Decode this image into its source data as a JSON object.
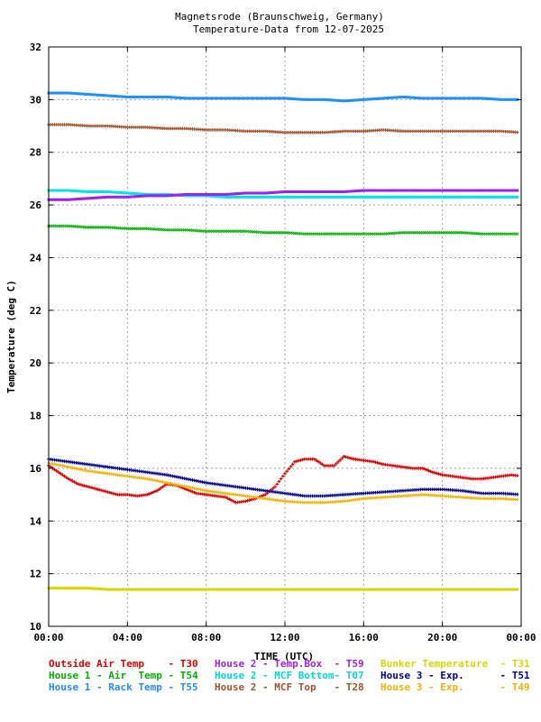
{
  "chart_data": {
    "type": "scatter",
    "title": "Magnetsrode (Braunschweig, Germany)",
    "subtitle": "Temperature-Data from 12-07-2025",
    "xlabel": "TIME (UTC)",
    "ylabel": "Temperature (deg C)",
    "xlim": [
      0,
      24
    ],
    "ylim": [
      10,
      32
    ],
    "x_ticks": [
      "00:00",
      "04:00",
      "08:00",
      "12:00",
      "16:00",
      "20:00",
      "00:00"
    ],
    "y_ticks": [
      "10",
      "12",
      "14",
      "16",
      "18",
      "20",
      "22",
      "24",
      "26",
      "28",
      "30",
      "32"
    ],
    "grid": true,
    "legend_position": "bottom",
    "series": [
      {
        "name": "House 1 - Rack Temp",
        "code": "T55",
        "color": "#1e90ff",
        "marker": "square",
        "x": [
          0,
          1,
          2,
          3,
          4,
          5,
          6,
          7,
          8,
          9,
          10,
          11,
          12,
          13,
          14,
          15,
          16,
          17,
          18,
          19,
          20,
          21,
          22,
          23,
          24
        ],
        "y": [
          30.25,
          30.25,
          30.2,
          30.15,
          30.1,
          30.1,
          30.1,
          30.05,
          30.05,
          30.05,
          30.05,
          30.05,
          30.05,
          30.0,
          30.0,
          29.95,
          30.0,
          30.05,
          30.1,
          30.05,
          30.05,
          30.05,
          30.05,
          30.0,
          30.0
        ]
      },
      {
        "name": "House 2 - MCF Top",
        "code": "T28",
        "color": "#a0522d",
        "marker": "plus",
        "x": [
          0,
          1,
          2,
          3,
          4,
          5,
          6,
          7,
          8,
          9,
          10,
          11,
          12,
          13,
          14,
          15,
          16,
          17,
          18,
          19,
          20,
          21,
          22,
          23,
          24
        ],
        "y": [
          29.05,
          29.05,
          29.0,
          29.0,
          28.95,
          28.95,
          28.9,
          28.9,
          28.85,
          28.85,
          28.8,
          28.8,
          28.75,
          28.75,
          28.75,
          28.8,
          28.8,
          28.85,
          28.8,
          28.8,
          28.8,
          28.8,
          28.8,
          28.8,
          28.75
        ]
      },
      {
        "name": "House 2 - MCF Bottom",
        "code": "T07",
        "color": "#00e5e5",
        "marker": "square",
        "x": [
          0,
          1,
          2,
          3,
          4,
          5,
          6,
          7,
          8,
          9,
          10,
          11,
          12,
          13,
          14,
          15,
          16,
          17,
          18,
          19,
          20,
          21,
          22,
          23,
          24
        ],
        "y": [
          26.55,
          26.55,
          26.5,
          26.5,
          26.45,
          26.4,
          26.4,
          26.35,
          26.35,
          26.3,
          26.3,
          26.3,
          26.3,
          26.3,
          26.3,
          26.3,
          26.3,
          26.3,
          26.3,
          26.3,
          26.3,
          26.3,
          26.3,
          26.3,
          26.3
        ]
      },
      {
        "name": "House 2 - Temp.Box",
        "code": "T59",
        "color": "#a020f0",
        "marker": "square",
        "x": [
          0,
          1,
          2,
          3,
          4,
          5,
          6,
          7,
          8,
          9,
          10,
          11,
          12,
          13,
          14,
          15,
          16,
          17,
          18,
          19,
          20,
          21,
          22,
          23,
          24
        ],
        "y": [
          26.2,
          26.2,
          26.25,
          26.3,
          26.3,
          26.35,
          26.35,
          26.4,
          26.4,
          26.4,
          26.45,
          26.45,
          26.5,
          26.5,
          26.5,
          26.5,
          26.55,
          26.55,
          26.55,
          26.55,
          26.55,
          26.55,
          26.55,
          26.55,
          26.55
        ]
      },
      {
        "name": "House 1 - Air  Temp",
        "code": "T54",
        "color": "#00b000",
        "marker": "cross",
        "x": [
          0,
          1,
          2,
          3,
          4,
          5,
          6,
          7,
          8,
          9,
          10,
          11,
          12,
          13,
          14,
          15,
          16,
          17,
          18,
          19,
          20,
          21,
          22,
          23,
          24
        ],
        "y": [
          25.2,
          25.2,
          25.15,
          25.15,
          25.1,
          25.1,
          25.05,
          25.05,
          25.0,
          25.0,
          25.0,
          24.95,
          24.95,
          24.9,
          24.9,
          24.9,
          24.9,
          24.9,
          24.95,
          24.95,
          24.95,
          24.95,
          24.9,
          24.9,
          24.9
        ]
      },
      {
        "name": "Outside Air Temp",
        "code": "T30",
        "color": "#e00000",
        "marker": "plus",
        "x": [
          0,
          0.5,
          1,
          1.5,
          2,
          2.5,
          3,
          3.5,
          4,
          4.5,
          5,
          5.5,
          6,
          6.5,
          7,
          7.5,
          8,
          8.5,
          9,
          9.5,
          10,
          10.5,
          11,
          11.5,
          12,
          12.5,
          13,
          13.5,
          14,
          14.5,
          15,
          15.5,
          16,
          16.5,
          17,
          17.5,
          18,
          18.5,
          19,
          19.5,
          20,
          20.5,
          21,
          21.5,
          22,
          22.5,
          23,
          23.5,
          24
        ],
        "y": [
          16.1,
          15.85,
          15.6,
          15.4,
          15.3,
          15.2,
          15.1,
          15.0,
          15.0,
          14.95,
          15.0,
          15.15,
          15.4,
          15.35,
          15.2,
          15.05,
          15.0,
          14.95,
          14.9,
          14.7,
          14.75,
          14.85,
          15.0,
          15.3,
          15.8,
          16.25,
          16.35,
          16.35,
          16.1,
          16.1,
          16.45,
          16.35,
          16.3,
          16.25,
          16.15,
          16.1,
          16.05,
          16.0,
          16.0,
          15.85,
          15.75,
          15.7,
          15.65,
          15.6,
          15.6,
          15.65,
          15.7,
          15.75,
          15.7
        ]
      },
      {
        "name": "House 3 - Exp.",
        "code": "T51",
        "color": "#000090",
        "marker": "plus",
        "x": [
          0,
          1,
          2,
          3,
          4,
          5,
          6,
          7,
          8,
          9,
          10,
          11,
          12,
          13,
          14,
          15,
          16,
          17,
          18,
          19,
          20,
          21,
          22,
          23,
          24
        ],
        "y": [
          16.35,
          16.25,
          16.15,
          16.05,
          15.95,
          15.85,
          15.75,
          15.6,
          15.45,
          15.35,
          15.25,
          15.15,
          15.05,
          14.95,
          14.95,
          15.0,
          15.05,
          15.1,
          15.15,
          15.2,
          15.2,
          15.15,
          15.05,
          15.05,
          15.0
        ]
      },
      {
        "name": "House 3 - Exp.",
        "code": "T49",
        "color": "#f0b400",
        "marker": "plus",
        "x": [
          0,
          1,
          2,
          3,
          4,
          5,
          6,
          7,
          8,
          9,
          10,
          11,
          12,
          13,
          14,
          15,
          16,
          17,
          18,
          19,
          20,
          21,
          22,
          23,
          24
        ],
        "y": [
          16.2,
          16.05,
          15.9,
          15.8,
          15.7,
          15.6,
          15.45,
          15.3,
          15.15,
          15.05,
          14.95,
          14.85,
          14.75,
          14.7,
          14.7,
          14.75,
          14.85,
          14.9,
          14.95,
          15.0,
          14.95,
          14.9,
          14.85,
          14.85,
          14.8
        ]
      },
      {
        "name": "Bunker Temperature",
        "code": "T31",
        "color": "#d8d800",
        "marker": "square",
        "x": [
          0,
          1,
          2,
          3,
          4,
          5,
          6,
          7,
          8,
          9,
          10,
          11,
          12,
          13,
          14,
          15,
          16,
          17,
          18,
          19,
          20,
          21,
          22,
          23,
          24
        ],
        "y": [
          11.45,
          11.45,
          11.45,
          11.4,
          11.4,
          11.4,
          11.4,
          11.4,
          11.4,
          11.4,
          11.4,
          11.4,
          11.4,
          11.4,
          11.4,
          11.4,
          11.4,
          11.4,
          11.4,
          11.4,
          11.4,
          11.4,
          11.4,
          11.4,
          11.4
        ]
      }
    ],
    "legend": [
      {
        "label": "Outside Air Temp    - T30",
        "color": "#e00000"
      },
      {
        "label": "House 2 - Temp.Box  - T59",
        "color": "#a020f0"
      },
      {
        "label": "Bunker Temperature  - T31",
        "color": "#d8d800"
      },
      {
        "label": "House 1 - Air  Temp - T54",
        "color": "#00b000"
      },
      {
        "label": "House 2 - MCF Bottom- T07",
        "color": "#00d8d8"
      },
      {
        "label": "House 3 - Exp.      - T51",
        "color": "#000090"
      },
      {
        "label": "House 1 - Rack Temp - T55",
        "color": "#1e90ff"
      },
      {
        "label": "House 2 - MCF Top   - T28",
        "color": "#a0522d"
      },
      {
        "label": "House 3 - Exp.      - T49",
        "color": "#f0b400"
      }
    ]
  }
}
